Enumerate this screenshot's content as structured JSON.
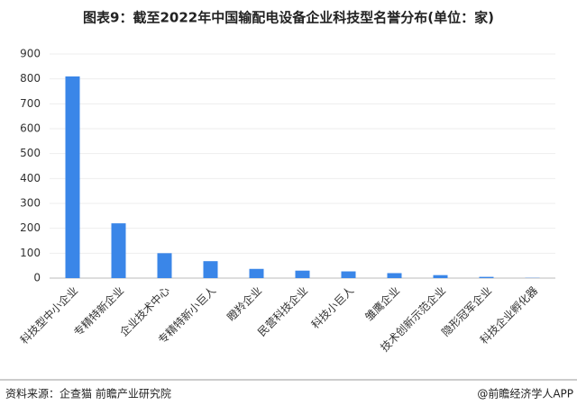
{
  "chart_data": {
    "type": "bar",
    "title": "图表9：截至2022年中国输配电设备企业科技型名誉分布(单位：家)",
    "categories": [
      "科技型中小企业",
      "专精特新企业",
      "企业技术中心",
      "专精特新小巨人",
      "瞪羚企业",
      "民营科技企业",
      "科技小巨人",
      "雏鹰企业",
      "技术创新示范企业",
      "隐形冠军企业",
      "科技企业孵化器"
    ],
    "values": [
      810,
      220,
      100,
      68,
      37,
      30,
      27,
      20,
      12,
      5,
      1
    ],
    "color": "#3a86e8",
    "ylim": [
      0,
      900
    ],
    "yticks": [
      0,
      100,
      200,
      300,
      400,
      500,
      600,
      700,
      800,
      900
    ],
    "grid": true,
    "source": "资料来源：企查猫 前瞻产业研究院",
    "brand": "@前瞻经济学人APP"
  }
}
